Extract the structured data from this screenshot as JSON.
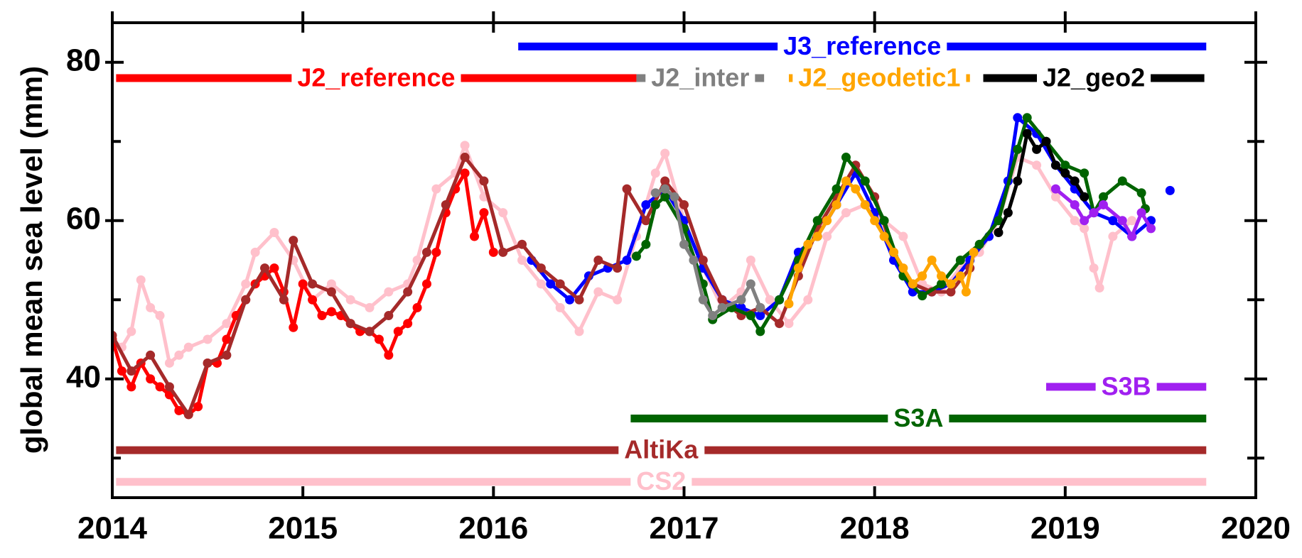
{
  "chart_data": {
    "type": "line",
    "y_label": "global mean sea level (mm)",
    "xlim": [
      2014,
      2020
    ],
    "xticks": [
      2014,
      2015,
      2016,
      2017,
      2018,
      2019,
      2020
    ],
    "ylim": [
      25,
      85
    ],
    "yticks": [
      40,
      60,
      80
    ],
    "yminorticks": [
      30,
      50,
      70
    ],
    "series": [
      {
        "name": "CS2",
        "color": "#ffc0cb",
        "period": [
          2014.02,
          2019.74
        ],
        "label_y": 27,
        "x": [
          2014.0,
          2014.05,
          2014.1,
          2014.15,
          2014.2,
          2014.25,
          2014.3,
          2014.35,
          2014.4,
          2014.5,
          2014.6,
          2014.7,
          2014.75,
          2014.85,
          2014.95,
          2015.05,
          2015.15,
          2015.25,
          2015.35,
          2015.45,
          2015.55,
          2015.6,
          2015.7,
          2015.8,
          2015.85,
          2015.95,
          2016.05,
          2016.15,
          2016.25,
          2016.35,
          2016.45,
          2016.55,
          2016.65,
          2016.75,
          2016.85,
          2016.9,
          2017.0,
          2017.1,
          2017.2,
          2017.3,
          2017.35,
          2017.45,
          2017.55,
          2017.65,
          2017.75,
          2017.85,
          2017.95,
          2018.05,
          2018.15,
          2018.25,
          2018.35,
          2018.45,
          2018.55,
          2018.65,
          2018.75,
          2018.85,
          2018.95,
          2019.05,
          2019.1,
          2019.15,
          2019.18,
          2019.25,
          2019.35
        ],
        "values": [
          45,
          44,
          46,
          52.5,
          49,
          48,
          42,
          43,
          44,
          45,
          47,
          52,
          56,
          58.5,
          55,
          50,
          52,
          50,
          49,
          51,
          52,
          55,
          64,
          66,
          69.5,
          63,
          61,
          55,
          52,
          49,
          46,
          51,
          50,
          58,
          66,
          68.5,
          60,
          54,
          49,
          51,
          55,
          50,
          47,
          50,
          58,
          61,
          62,
          60,
          58,
          52,
          51,
          54,
          56,
          60,
          68,
          67,
          63,
          60,
          59,
          54,
          51.5,
          58,
          60
        ]
      },
      {
        "name": "J2_reference",
        "color": "#ff0000",
        "period": [
          2014.02,
          2016.75
        ],
        "label_y": 78,
        "x": [
          2014.0,
          2014.05,
          2014.1,
          2014.15,
          2014.2,
          2014.25,
          2014.3,
          2014.35,
          2014.4,
          2014.45,
          2014.5,
          2014.55,
          2014.6,
          2014.65,
          2014.7,
          2014.75,
          2014.8,
          2014.85,
          2014.9,
          2014.95,
          2015.0,
          2015.05,
          2015.1,
          2015.15,
          2015.2,
          2015.25,
          2015.3,
          2015.35,
          2015.4,
          2015.45,
          2015.5,
          2015.55,
          2015.6,
          2015.65,
          2015.7,
          2015.75,
          2015.8,
          2015.85,
          2015.9,
          2015.95,
          2016.0
        ],
        "values": [
          45,
          41,
          39,
          42,
          40,
          39,
          38,
          36,
          35.5,
          36.5,
          42,
          42,
          45,
          48,
          50,
          52,
          53,
          54,
          51,
          46.5,
          52,
          50,
          48,
          48.5,
          48,
          47,
          46,
          46,
          45,
          43,
          46,
          47,
          49,
          52,
          56,
          61,
          64,
          66,
          58,
          61,
          56
        ]
      },
      {
        "name": "J3_reference",
        "color": "#0000ff",
        "period": [
          2016.13,
          2019.74
        ],
        "label_y": 82,
        "x": [
          2016.2,
          2016.3,
          2016.4,
          2016.5,
          2016.6,
          2016.7,
          2016.8,
          2016.9,
          2017.0,
          2017.1,
          2017.2,
          2017.3,
          2017.4,
          2017.5,
          2017.6,
          2017.7,
          2017.8,
          2017.9,
          2018.0,
          2018.1,
          2018.2,
          2018.3,
          2018.4,
          2018.5,
          2018.6,
          2018.7,
          2018.75,
          2018.85,
          2018.95,
          2019.05,
          2019.15,
          2019.25,
          2019.35,
          2019.45,
          2019.5,
          2019.55
        ],
        "values": [
          55,
          52,
          50,
          53,
          54,
          55,
          62,
          64,
          60,
          54,
          50,
          49,
          48,
          50,
          56,
          58,
          62,
          66,
          61,
          55,
          51,
          51,
          52,
          55,
          58,
          65,
          73,
          71,
          67,
          64,
          61,
          60,
          58,
          60,
          null,
          63.8
        ]
      },
      {
        "name": "AltiKa",
        "color": "#a52a2a",
        "period": [
          2014.02,
          2019.74
        ],
        "label_y": 31,
        "x": [
          2014.0,
          2014.1,
          2014.2,
          2014.3,
          2014.4,
          2014.5,
          2014.6,
          2014.7,
          2014.8,
          2014.9,
          2014.95,
          2015.05,
          2015.15,
          2015.25,
          2015.35,
          2015.45,
          2015.55,
          2015.65,
          2015.75,
          2015.85,
          2015.95,
          2016.05,
          2016.15,
          2016.25,
          2016.35,
          2016.45,
          2016.55,
          2016.65,
          2016.7,
          2016.8,
          2016.9,
          2017.0,
          2017.1,
          2017.2,
          2017.3,
          2017.4,
          2017.5,
          2017.6,
          2017.7,
          2017.8,
          2017.9,
          2018.0,
          2018.1,
          2018.2,
          2018.3,
          2018.4,
          2018.5
        ],
        "values": [
          45.5,
          41,
          43,
          39,
          35.5,
          42,
          43,
          50,
          54,
          50,
          57.5,
          52,
          51,
          47,
          46,
          48,
          51,
          56,
          62,
          68,
          65,
          56,
          57,
          54,
          52,
          50,
          55,
          54,
          64,
          60,
          65,
          62,
          55,
          50,
          48,
          49,
          47,
          53,
          59,
          63,
          67,
          63,
          56,
          52,
          51,
          51,
          54
        ]
      },
      {
        "name": "S3A",
        "color": "#006400",
        "period": [
          2016.72,
          2019.74
        ],
        "label_y": 35,
        "x": [
          2016.75,
          2016.8,
          2016.85,
          2016.9,
          2017.0,
          2017.1,
          2017.15,
          2017.25,
          2017.35,
          2017.4,
          2017.5,
          2017.6,
          2017.7,
          2017.8,
          2017.85,
          2017.95,
          2018.05,
          2018.15,
          2018.25,
          2018.35,
          2018.45,
          2018.55,
          2018.65,
          2018.75,
          2018.8,
          2018.9,
          2019.0,
          2019.1,
          2019.15,
          2019.2,
          2019.3,
          2019.4,
          2019.42
        ],
        "values": [
          55.5,
          57,
          62,
          63,
          59,
          52,
          47.5,
          49,
          48,
          46,
          50,
          55,
          60,
          64,
          68,
          65,
          60,
          53,
          50.5,
          52,
          55,
          57,
          60,
          69,
          73,
          70,
          67,
          66,
          61,
          63,
          65,
          63.5,
          61.5
        ]
      },
      {
        "name": "J2_inter",
        "color": "#808080",
        "period": [
          2016.75,
          2017.42
        ],
        "label_y": 78,
        "x": [
          2016.85,
          2016.9,
          2016.95,
          2017.0,
          2017.05,
          2017.1,
          2017.15,
          2017.2,
          2017.3,
          2017.35,
          2017.4
        ],
        "values": [
          63.5,
          64,
          63,
          57,
          55,
          50,
          48,
          49,
          50,
          52,
          49
        ]
      },
      {
        "name": "J2_geodetic1",
        "color": "#ffa500",
        "period": [
          2017.55,
          2018.5
        ],
        "label_y": 78,
        "x": [
          2017.55,
          2017.6,
          2017.65,
          2017.7,
          2017.75,
          2017.8,
          2017.85,
          2017.9,
          2017.95,
          2018.0,
          2018.05,
          2018.1,
          2018.15,
          2018.2,
          2018.25,
          2018.3,
          2018.35,
          2018.4,
          2018.45,
          2018.48,
          2018.52
        ],
        "values": [
          49.5,
          54,
          57,
          58,
          60,
          62,
          65,
          64,
          62,
          60,
          58,
          56,
          54,
          52,
          53,
          55,
          53,
          52,
          53,
          51,
          56
        ]
      },
      {
        "name": "J2_geo2",
        "color": "#000000",
        "period": [
          2018.57,
          2019.73
        ],
        "label_y": 78,
        "x": [
          2018.65,
          2018.7,
          2018.75,
          2018.8,
          2018.85,
          2018.9,
          2018.95,
          2019.0,
          2019.05,
          2019.1
        ],
        "values": [
          58.5,
          61,
          65,
          71,
          69,
          70,
          67,
          66,
          65,
          63
        ]
      },
      {
        "name": "S3B",
        "color": "#a020f0",
        "period": [
          2018.9,
          2019.74
        ],
        "label_y": 39,
        "x": [
          2018.95,
          2019.05,
          2019.1,
          2019.15,
          2019.2,
          2019.3,
          2019.35,
          2019.4,
          2019.45
        ],
        "values": [
          64,
          62,
          60,
          61,
          62,
          60,
          58,
          61,
          59
        ]
      }
    ]
  }
}
